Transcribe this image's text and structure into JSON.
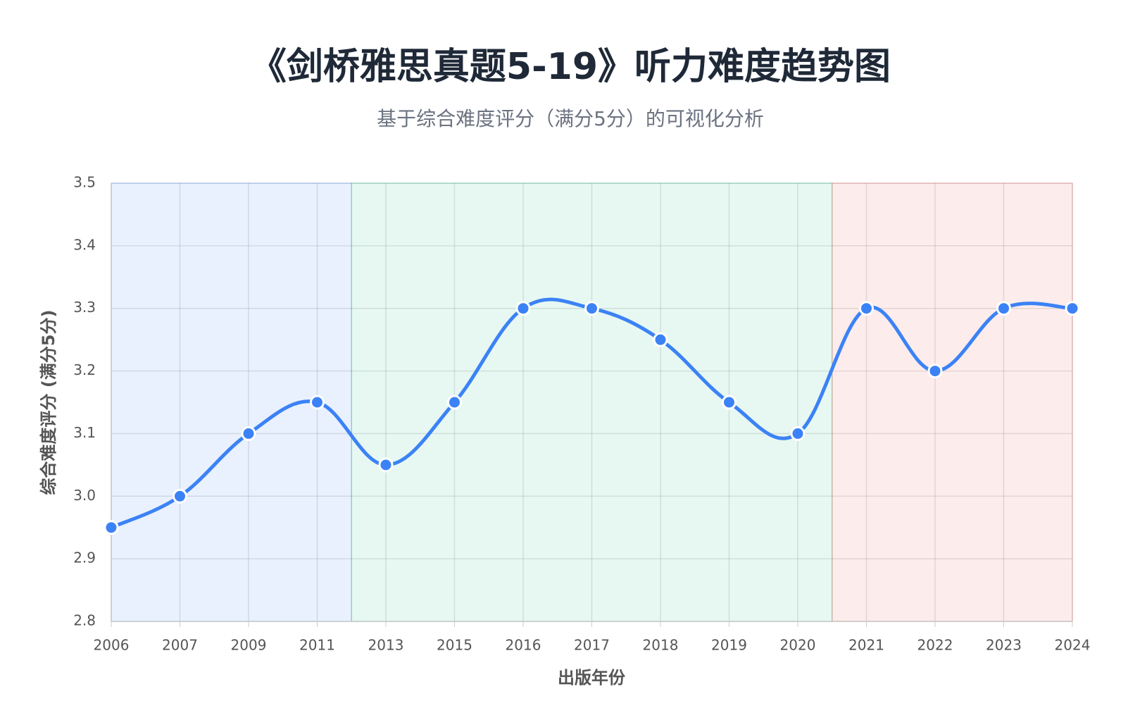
{
  "chart_data": {
    "type": "line",
    "title": "《剑桥雅思真题5-19》听力难度趋势图",
    "subtitle": "基于综合难度评分（满分5分）的可视化分析",
    "x_label": "出版年份",
    "y_label": "综合难度评分 (满分5分)",
    "categories": [
      "2006",
      "2007",
      "2009",
      "2011",
      "2013",
      "2015",
      "2016",
      "2017",
      "2018",
      "2019",
      "2020",
      "2021",
      "2022",
      "2023",
      "2024"
    ],
    "series": [
      {
        "color": "#3b82f6",
        "values": [
          2.95,
          3.0,
          3.1,
          3.15,
          3.05,
          3.15,
          3.3,
          3.3,
          3.25,
          3.15,
          3.1,
          3.3,
          3.2,
          3.3,
          3.3
        ]
      }
    ],
    "ylim": [
      2.8,
      3.5
    ],
    "yticks": [
      2.8,
      2.9,
      {
        "value": 3.0,
        "label": "3.0"
      },
      3.1,
      3.2,
      3.3,
      3.4,
      3.5
    ],
    "grid": true
  }
}
